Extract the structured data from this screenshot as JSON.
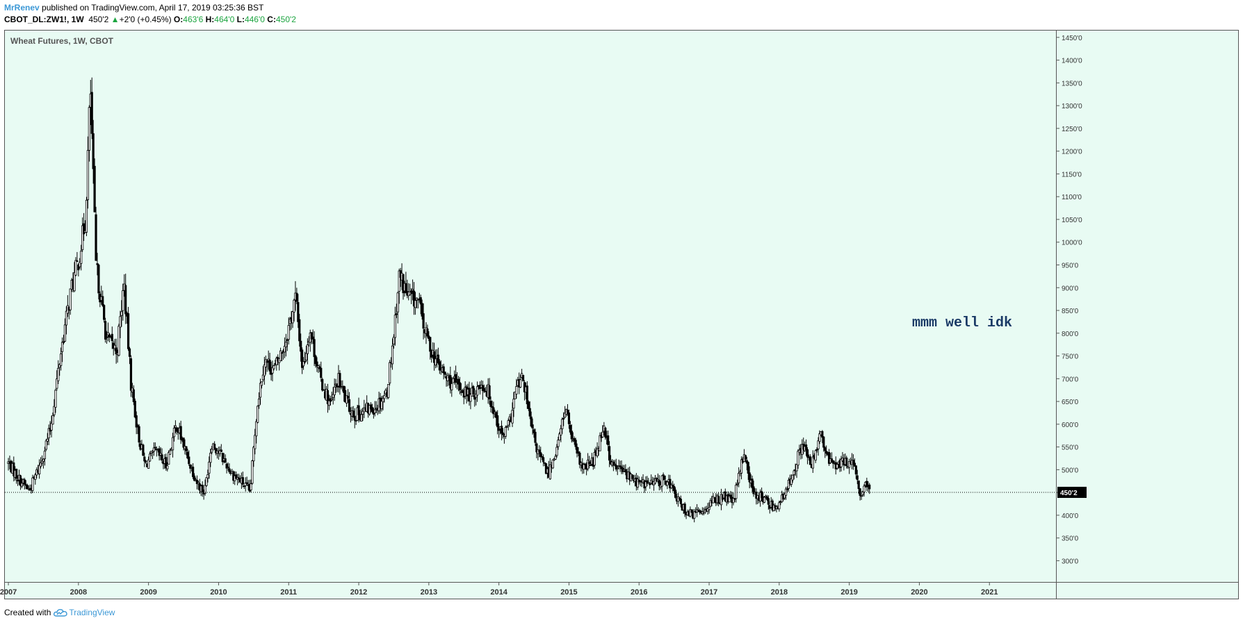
{
  "header": {
    "author": "MrRenev",
    "published_text": "published on TradingView.com, April 17, 2019 03:25:36 BST",
    "symbol": "CBOT_DL:ZW1!, 1W",
    "last_price": "450'2",
    "change_arrow": "▲",
    "change": "+2'0 (+0.45%)",
    "o_label": "O:",
    "o_value": "463'6",
    "h_label": "H:",
    "h_value": "464'0",
    "l_label": "L:",
    "l_value": "446'0",
    "c_label": "C:",
    "c_value": "450'2"
  },
  "chart_data": {
    "type": "candlestick",
    "title": "Wheat Futures, 1W, CBOT",
    "annotation": "mmm well idk",
    "last_price_label": "450'2",
    "last_price_value": 450.25,
    "ylim": [
      290,
      1465
    ],
    "xlim": [
      2006.95,
      2021.95
    ],
    "y_ticks": [
      {
        "value": 300,
        "label": "300'0"
      },
      {
        "value": 350,
        "label": "350'0"
      },
      {
        "value": 400,
        "label": "400'0"
      },
      {
        "value": 450,
        "label": "450'0"
      },
      {
        "value": 500,
        "label": "500'0"
      },
      {
        "value": 550,
        "label": "550'0"
      },
      {
        "value": 600,
        "label": "600'0"
      },
      {
        "value": 650,
        "label": "650'0"
      },
      {
        "value": 700,
        "label": "700'0"
      },
      {
        "value": 750,
        "label": "750'0"
      },
      {
        "value": 800,
        "label": "800'0"
      },
      {
        "value": 850,
        "label": "850'0"
      },
      {
        "value": 900,
        "label": "900'0"
      },
      {
        "value": 950,
        "label": "950'0"
      },
      {
        "value": 1000,
        "label": "1000'0"
      },
      {
        "value": 1050,
        "label": "1050'0"
      },
      {
        "value": 1100,
        "label": "1100'0"
      },
      {
        "value": 1150,
        "label": "1150'0"
      },
      {
        "value": 1200,
        "label": "1200'0"
      },
      {
        "value": 1250,
        "label": "1250'0"
      },
      {
        "value": 1300,
        "label": "1300'0"
      },
      {
        "value": 1350,
        "label": "1350'0"
      },
      {
        "value": 1400,
        "label": "1400'0"
      },
      {
        "value": 1450,
        "label": "1450'0"
      }
    ],
    "x_ticks": [
      "2007",
      "2008",
      "2009",
      "2010",
      "2011",
      "2012",
      "2013",
      "2014",
      "2015",
      "2016",
      "2017",
      "2018",
      "2019",
      "2020",
      "2021"
    ],
    "close_path": [
      [
        2007.0,
        515
      ],
      [
        2007.15,
        480
      ],
      [
        2007.3,
        455
      ],
      [
        2007.45,
        510
      ],
      [
        2007.6,
        590
      ],
      [
        2007.75,
        760
      ],
      [
        2007.9,
        900
      ],
      [
        2008.0,
        960
      ],
      [
        2008.1,
        1050
      ],
      [
        2008.17,
        1340
      ],
      [
        2008.25,
        950
      ],
      [
        2008.4,
        790
      ],
      [
        2008.55,
        760
      ],
      [
        2008.65,
        910
      ],
      [
        2008.75,
        690
      ],
      [
        2008.85,
        580
      ],
      [
        2008.95,
        510
      ],
      [
        2009.1,
        540
      ],
      [
        2009.25,
        510
      ],
      [
        2009.4,
        600
      ],
      [
        2009.55,
        530
      ],
      [
        2009.7,
        470
      ],
      [
        2009.8,
        450
      ],
      [
        2009.9,
        560
      ],
      [
        2010.0,
        540
      ],
      [
        2010.2,
        490
      ],
      [
        2010.35,
        470
      ],
      [
        2010.45,
        450
      ],
      [
        2010.55,
        640
      ],
      [
        2010.65,
        740
      ],
      [
        2010.8,
        720
      ],
      [
        2010.95,
        780
      ],
      [
        2011.1,
        880
      ],
      [
        2011.2,
        720
      ],
      [
        2011.3,
        810
      ],
      [
        2011.45,
        700
      ],
      [
        2011.6,
        640
      ],
      [
        2011.7,
        700
      ],
      [
        2011.85,
        640
      ],
      [
        2011.95,
        620
      ],
      [
        2012.1,
        630
      ],
      [
        2012.25,
        640
      ],
      [
        2012.4,
        670
      ],
      [
        2012.5,
        800
      ],
      [
        2012.58,
        930
      ],
      [
        2012.7,
        880
      ],
      [
        2012.85,
        870
      ],
      [
        2012.95,
        800
      ],
      [
        2013.1,
        740
      ],
      [
        2013.25,
        700
      ],
      [
        2013.45,
        680
      ],
      [
        2013.6,
        660
      ],
      [
        2013.75,
        690
      ],
      [
        2013.85,
        670
      ],
      [
        2013.95,
        620
      ],
      [
        2014.05,
        570
      ],
      [
        2014.15,
        600
      ],
      [
        2014.25,
        680
      ],
      [
        2014.35,
        700
      ],
      [
        2014.45,
        600
      ],
      [
        2014.55,
        540
      ],
      [
        2014.7,
        490
      ],
      [
        2014.85,
        560
      ],
      [
        2014.95,
        640
      ],
      [
        2015.05,
        560
      ],
      [
        2015.2,
        500
      ],
      [
        2015.35,
        520
      ],
      [
        2015.5,
        600
      ],
      [
        2015.6,
        510
      ],
      [
        2015.75,
        500
      ],
      [
        2015.9,
        480
      ],
      [
        2016.0,
        470
      ],
      [
        2016.2,
        470
      ],
      [
        2016.4,
        480
      ],
      [
        2016.5,
        450
      ],
      [
        2016.6,
        420
      ],
      [
        2016.75,
        400
      ],
      [
        2016.9,
        410
      ],
      [
        2017.05,
        430
      ],
      [
        2017.2,
        440
      ],
      [
        2017.35,
        430
      ],
      [
        2017.5,
        540
      ],
      [
        2017.62,
        450
      ],
      [
        2017.75,
        440
      ],
      [
        2017.9,
        420
      ],
      [
        2018.0,
        425
      ],
      [
        2018.1,
        450
      ],
      [
        2018.2,
        500
      ],
      [
        2018.35,
        560
      ],
      [
        2018.45,
        500
      ],
      [
        2018.58,
        580
      ],
      [
        2018.7,
        520
      ],
      [
        2018.85,
        510
      ],
      [
        2019.0,
        520
      ],
      [
        2019.08,
        500
      ],
      [
        2019.15,
        440
      ],
      [
        2019.22,
        465
      ],
      [
        2019.29,
        450
      ]
    ]
  },
  "footer": {
    "created_with": "Created with",
    "brand": "TradingView"
  },
  "colors": {
    "background": "#e8fbf3",
    "candle": "#000000",
    "accent": "#3c98d6",
    "up": "#1ba43f",
    "annotation": "#1a3a66"
  }
}
